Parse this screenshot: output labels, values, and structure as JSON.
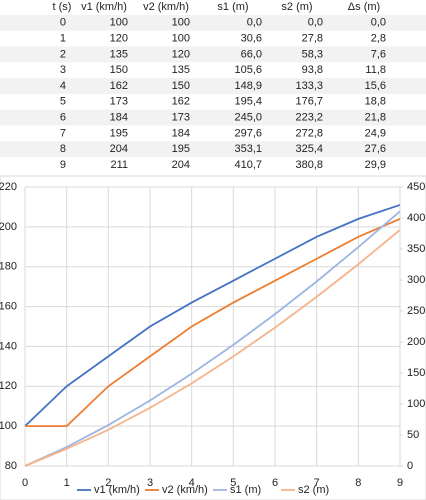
{
  "table": {
    "columns": [
      "t (s)",
      "v1 (km/h)",
      "v2 (km/h)",
      "s1 (m)",
      "s2 (m)",
      "Δs (m)"
    ],
    "rows": [
      [
        "0",
        "100",
        "100",
        "0,0",
        "0,0",
        "0,0"
      ],
      [
        "1",
        "120",
        "100",
        "30,6",
        "27,8",
        "2,8"
      ],
      [
        "2",
        "135",
        "120",
        "66,0",
        "58,3",
        "7,6"
      ],
      [
        "3",
        "150",
        "135",
        "105,6",
        "93,8",
        "11,8"
      ],
      [
        "4",
        "162",
        "150",
        "148,9",
        "133,3",
        "15,6"
      ],
      [
        "5",
        "173",
        "162",
        "195,4",
        "176,7",
        "18,8"
      ],
      [
        "6",
        "184",
        "173",
        "245,0",
        "223,2",
        "21,8"
      ],
      [
        "7",
        "195",
        "184",
        "297,6",
        "272,8",
        "24,9"
      ],
      [
        "8",
        "204",
        "195",
        "353,1",
        "325,4",
        "27,6"
      ],
      [
        "9",
        "211",
        "204",
        "410,7",
        "380,8",
        "29,9"
      ]
    ]
  },
  "chart_data": {
    "type": "line",
    "x": [
      0,
      1,
      2,
      3,
      4,
      5,
      6,
      7,
      8,
      9
    ],
    "series": [
      {
        "name": "v1 (km/h)",
        "color": "#4472c4",
        "values": [
          100,
          120,
          135,
          150,
          162,
          173,
          184,
          195,
          204,
          211
        ]
      },
      {
        "name": "v2 (km/h)",
        "color": "#ed7d31",
        "values": [
          100,
          100,
          120,
          135,
          150,
          162,
          173,
          184,
          195,
          204
        ]
      },
      {
        "name": "s1 (m)",
        "color": "#9db5e3",
        "axis": "y2",
        "values": [
          0,
          30.6,
          66,
          105.6,
          148.9,
          195.4,
          245,
          297.6,
          353.1,
          410.7
        ]
      },
      {
        "name": "s2 (m)",
        "color": "#f6b48a",
        "axis": "y2",
        "values": [
          0,
          27.8,
          58.3,
          93.8,
          133.3,
          176.7,
          223.2,
          272.8,
          325.4,
          380.8
        ]
      }
    ],
    "xlim": [
      0,
      9
    ],
    "xticks": [
      0,
      1,
      2,
      3,
      4,
      5,
      6,
      7,
      8,
      9
    ],
    "ylim": [
      80,
      220
    ],
    "yticks": [
      80,
      100,
      120,
      140,
      160,
      180,
      200,
      220
    ],
    "y2lim": [
      0,
      450
    ],
    "y2ticks": [
      0,
      50,
      100,
      150,
      200,
      250,
      300,
      350,
      400,
      450
    ],
    "grid": true,
    "legend": "bottom"
  }
}
